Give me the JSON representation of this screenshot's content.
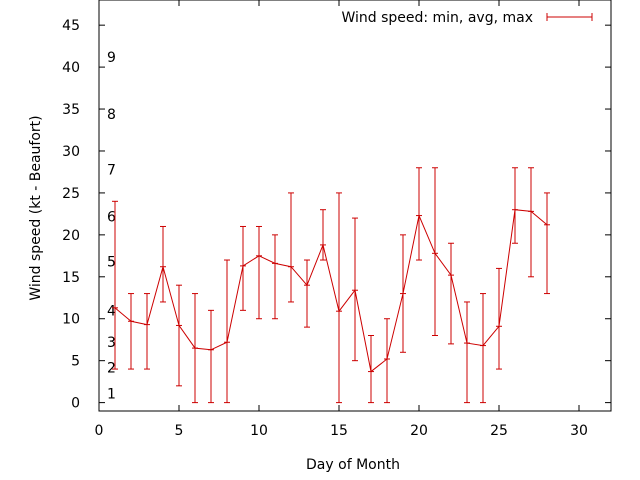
{
  "chart_data": {
    "type": "line",
    "title": "",
    "xlabel": "Day of Month",
    "ylabel": "Wind speed (kt - Beaufort)",
    "xlim": [
      0,
      32
    ],
    "ylim": [
      -1,
      48
    ],
    "xticks": [
      "0",
      "5",
      "10",
      "15",
      "20",
      "25",
      "30"
    ],
    "yticks": [
      "0",
      "5",
      "10",
      "15",
      "20",
      "25",
      "30",
      "35",
      "40",
      "45"
    ],
    "grid": false,
    "legend_position": "top-right",
    "colors": {
      "series": "#cc0000",
      "axis": "#000000"
    },
    "series": [
      {
        "name": "Wind speed: min, avg, max",
        "x": [
          1,
          2,
          3,
          4,
          5,
          6,
          7,
          8,
          9,
          10,
          11,
          12,
          13,
          14,
          15,
          16,
          17,
          18,
          19,
          20,
          21,
          22,
          23,
          24,
          25,
          26,
          27,
          28
        ],
        "avg": [
          11.3,
          9.7,
          9.3,
          16.2,
          9.2,
          6.5,
          6.3,
          7.2,
          16.3,
          17.5,
          16.6,
          16.2,
          14.0,
          18.8,
          10.9,
          13.4,
          3.7,
          5.2,
          13.0,
          22.3,
          17.8,
          15.2,
          7.1,
          6.8,
          9.1,
          23.0,
          22.8,
          21.2
        ],
        "min": [
          4,
          4,
          4,
          12,
          2,
          0,
          0,
          0,
          11,
          10,
          10,
          12,
          9,
          17,
          0,
          5,
          0,
          0,
          6,
          17,
          8,
          7,
          0,
          0,
          4,
          19,
          15,
          13
        ],
        "max": [
          24,
          13,
          13,
          21,
          14,
          13,
          11,
          17,
          21,
          21,
          20,
          25,
          17,
          23,
          25,
          22,
          8,
          10,
          20,
          28,
          28,
          19,
          12,
          13,
          16,
          28,
          28,
          25
        ]
      }
    ],
    "annotations": [
      {
        "text": "1",
        "y": 1.1
      },
      {
        "text": "2",
        "y": 4.2
      },
      {
        "text": "3",
        "y": 7.2
      },
      {
        "text": "4",
        "y": 11.0
      },
      {
        "text": "5",
        "y": 16.8
      },
      {
        "text": "6",
        "y": 22.2
      },
      {
        "text": "7",
        "y": 27.8
      },
      {
        "text": "8",
        "y": 34.4
      },
      {
        "text": "9",
        "y": 41.2
      }
    ]
  }
}
